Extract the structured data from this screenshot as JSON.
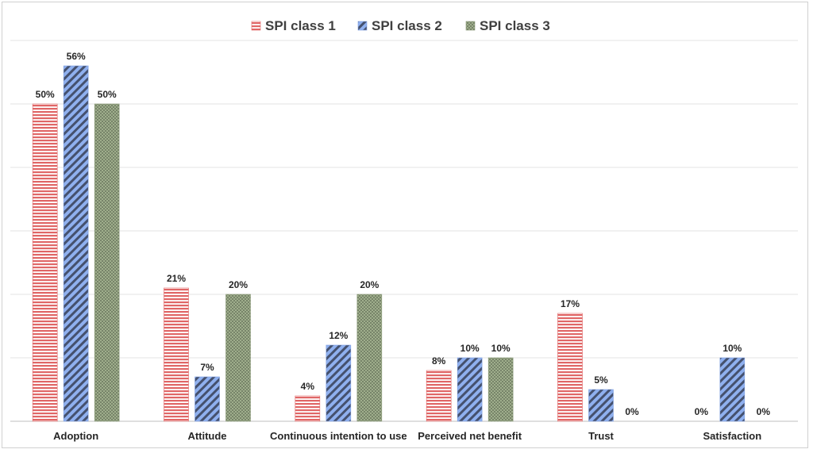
{
  "chart_data": {
    "type": "bar",
    "title": "",
    "xlabel": "",
    "ylabel": "",
    "categories": [
      "Adoption",
      "Attitude",
      "Continuous intention to use",
      "Perceived net benefit",
      "Trust",
      "Satisfaction"
    ],
    "series": [
      {
        "name": "SPI class 1",
        "values": [
          50,
          21,
          4,
          8,
          17,
          0
        ],
        "labels": [
          "50%",
          "21%",
          "4%",
          "8%",
          "17%",
          "0%"
        ],
        "color": "#e06666",
        "pattern": "horizontal-stripes"
      },
      {
        "name": "SPI class 2",
        "values": [
          56,
          7,
          12,
          10,
          5,
          10
        ],
        "labels": [
          "56%",
          "7%",
          "12%",
          "10%",
          "5%",
          "10%"
        ],
        "color": "#7f9fdf",
        "pattern": "diagonal-stripes"
      },
      {
        "name": "SPI class 3",
        "values": [
          50,
          20,
          20,
          10,
          0,
          0
        ],
        "labels": [
          "50%",
          "20%",
          "20%",
          "10%",
          "0%",
          "0%"
        ],
        "color": "#8a9a78",
        "pattern": "dots"
      }
    ],
    "ylim": [
      0,
      60
    ],
    "grid": true,
    "legend_position": "top-center"
  }
}
